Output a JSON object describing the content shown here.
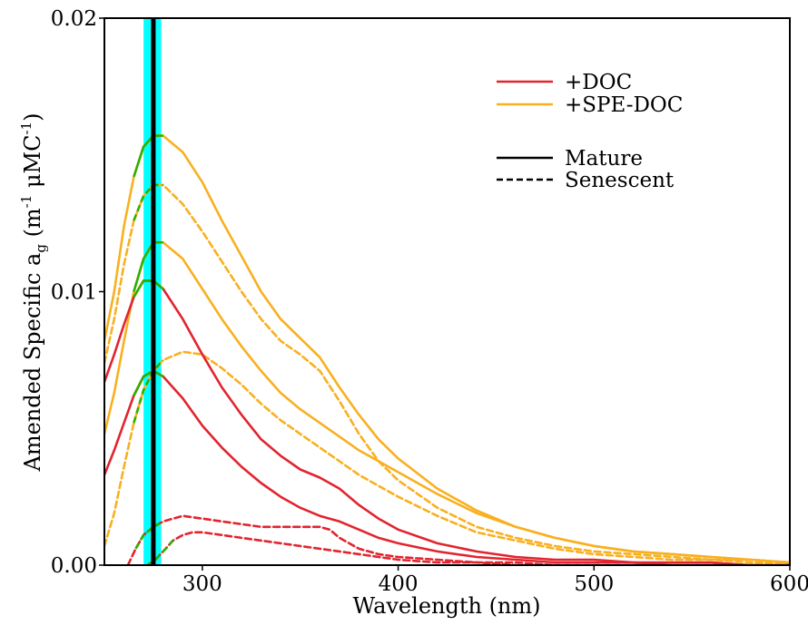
{
  "chart_data": {
    "type": "line",
    "xlabel": "Wavelength (nm)",
    "ylabel": {
      "prefix": "Amended Specific a",
      "prefix_sub": "g",
      "open": " (m",
      "exp1": "-1",
      "mid": " μMC",
      "exp2": "-1",
      "close": ")"
    },
    "xlim": [
      250,
      600
    ],
    "ylim": [
      0,
      0.02
    ],
    "xticks": [
      {
        "value": 300,
        "label": "300"
      },
      {
        "value": 400,
        "label": "400"
      },
      {
        "value": 500,
        "label": "500"
      },
      {
        "value": 600,
        "label": "600"
      }
    ],
    "yticks": [
      {
        "value": 0,
        "label": "0.00"
      },
      {
        "value": 0.01,
        "label": "0.01"
      },
      {
        "value": 0.02,
        "label": "0.02"
      }
    ],
    "grid": false,
    "legend_position": "top-right",
    "legend": {
      "colors": [
        {
          "label": "+DOC",
          "color": "#e2242f"
        },
        {
          "label": "+SPE-DOC",
          "color": "#f9b020"
        }
      ],
      "styles": [
        {
          "label": "Mature",
          "dash": "solid"
        },
        {
          "label": "Senescent",
          "dash": "dashed"
        }
      ]
    },
    "vband": {
      "x": [
        270,
        279
      ],
      "color": "#00ffff"
    },
    "vline": {
      "x": 275,
      "color": "#000000"
    },
    "highlight_color": "#2db000",
    "highlight_range": [
      265,
      285
    ],
    "series": [
      {
        "group": "+SPE-DOC",
        "stage": "Mature",
        "color": "#f9b020",
        "dash": "solid",
        "points": [
          [
            250,
            0.0082
          ],
          [
            255,
            0.01
          ],
          [
            260,
            0.0124
          ],
          [
            265,
            0.0142
          ],
          [
            270,
            0.0153
          ],
          [
            275,
            0.0157
          ],
          [
            280,
            0.0157
          ],
          [
            290,
            0.0151
          ],
          [
            300,
            0.014
          ],
          [
            310,
            0.0126
          ],
          [
            320,
            0.0113
          ],
          [
            330,
            0.01
          ],
          [
            340,
            0.009
          ],
          [
            350,
            0.0083
          ],
          [
            360,
            0.0076
          ],
          [
            370,
            0.0065
          ],
          [
            380,
            0.0055
          ],
          [
            390,
            0.0046
          ],
          [
            400,
            0.0039
          ],
          [
            420,
            0.0028
          ],
          [
            440,
            0.002
          ],
          [
            460,
            0.0014
          ],
          [
            480,
            0.001
          ],
          [
            500,
            0.0007
          ],
          [
            520,
            0.0005
          ],
          [
            540,
            0.0004
          ],
          [
            560,
            0.0003
          ],
          [
            580,
            0.0002
          ],
          [
            600,
            0.0001
          ]
        ]
      },
      {
        "group": "+SPE-DOC",
        "stage": "Senescent",
        "color": "#f9b020",
        "dash": "dashed",
        "points": [
          [
            250,
            0.0074
          ],
          [
            255,
            0.009
          ],
          [
            260,
            0.011
          ],
          [
            265,
            0.0126
          ],
          [
            270,
            0.0135
          ],
          [
            275,
            0.0139
          ],
          [
            280,
            0.0139
          ],
          [
            290,
            0.0132
          ],
          [
            300,
            0.0122
          ],
          [
            310,
            0.0111
          ],
          [
            320,
            0.01
          ],
          [
            330,
            0.009
          ],
          [
            340,
            0.0082
          ],
          [
            350,
            0.0077
          ],
          [
            360,
            0.0071
          ],
          [
            370,
            0.006
          ],
          [
            380,
            0.0048
          ],
          [
            390,
            0.0038
          ],
          [
            400,
            0.0031
          ],
          [
            420,
            0.0021
          ],
          [
            440,
            0.0014
          ],
          [
            460,
            0.001
          ],
          [
            480,
            0.0007
          ],
          [
            500,
            0.0005
          ],
          [
            520,
            0.0004
          ],
          [
            540,
            0.0003
          ],
          [
            560,
            0.0002
          ],
          [
            580,
            0.0002
          ],
          [
            600,
            0.0001
          ]
        ]
      },
      {
        "group": "+SPE-DOC",
        "stage": "Mature",
        "color": "#f9b020",
        "dash": "solid",
        "points": [
          [
            250,
            0.0048
          ],
          [
            255,
            0.0063
          ],
          [
            260,
            0.0082
          ],
          [
            265,
            0.01
          ],
          [
            270,
            0.0112
          ],
          [
            275,
            0.0118
          ],
          [
            280,
            0.0118
          ],
          [
            290,
            0.0112
          ],
          [
            300,
            0.0101
          ],
          [
            310,
            0.009
          ],
          [
            320,
            0.008
          ],
          [
            330,
            0.0071
          ],
          [
            340,
            0.0063
          ],
          [
            350,
            0.0057
          ],
          [
            360,
            0.0052
          ],
          [
            370,
            0.0047
          ],
          [
            380,
            0.0042
          ],
          [
            390,
            0.0038
          ],
          [
            400,
            0.0034
          ],
          [
            420,
            0.0026
          ],
          [
            440,
            0.0019
          ],
          [
            460,
            0.0014
          ],
          [
            480,
            0.001
          ],
          [
            500,
            0.0007
          ],
          [
            520,
            0.0005
          ],
          [
            540,
            0.0004
          ],
          [
            560,
            0.0003
          ],
          [
            580,
            0.0002
          ],
          [
            600,
            0.0001
          ]
        ]
      },
      {
        "group": "+SPE-DOC",
        "stage": "Senescent",
        "color": "#f9b020",
        "dash": "dashed",
        "points": [
          [
            250,
            0.0007
          ],
          [
            255,
            0.0019
          ],
          [
            260,
            0.0036
          ],
          [
            265,
            0.0052
          ],
          [
            270,
            0.0064
          ],
          [
            275,
            0.0071
          ],
          [
            280,
            0.0075
          ],
          [
            290,
            0.0078
          ],
          [
            300,
            0.0077
          ],
          [
            310,
            0.0072
          ],
          [
            320,
            0.0066
          ],
          [
            330,
            0.0059
          ],
          [
            340,
            0.0053
          ],
          [
            350,
            0.0048
          ],
          [
            360,
            0.0043
          ],
          [
            370,
            0.0038
          ],
          [
            380,
            0.0033
          ],
          [
            390,
            0.0029
          ],
          [
            400,
            0.0025
          ],
          [
            420,
            0.0018
          ],
          [
            440,
            0.0012
          ],
          [
            460,
            0.0009
          ],
          [
            480,
            0.0006
          ],
          [
            500,
            0.0004
          ],
          [
            520,
            0.0003
          ],
          [
            540,
            0.0002
          ],
          [
            560,
            0.0002
          ],
          [
            580,
            0.0001
          ],
          [
            600,
            0.0001
          ]
        ]
      },
      {
        "group": "+DOC",
        "stage": "Mature",
        "color": "#e2242f",
        "dash": "solid",
        "points": [
          [
            250,
            0.0067
          ],
          [
            255,
            0.0077
          ],
          [
            260,
            0.0088
          ],
          [
            265,
            0.0098
          ],
          [
            270,
            0.0104
          ],
          [
            275,
            0.0104
          ],
          [
            280,
            0.0101
          ],
          [
            290,
            0.009
          ],
          [
            300,
            0.0077
          ],
          [
            310,
            0.0065
          ],
          [
            320,
            0.0055
          ],
          [
            330,
            0.0046
          ],
          [
            340,
            0.004
          ],
          [
            350,
            0.0035
          ],
          [
            360,
            0.0032
          ],
          [
            370,
            0.0028
          ],
          [
            380,
            0.0022
          ],
          [
            390,
            0.0017
          ],
          [
            400,
            0.0013
          ],
          [
            420,
            0.0008
          ],
          [
            440,
            0.0005
          ],
          [
            460,
            0.0003
          ],
          [
            480,
            0.0002
          ],
          [
            500,
            0.0002
          ],
          [
            520,
            0.0001
          ],
          [
            540,
            0.0001
          ],
          [
            560,
            0.0001
          ],
          [
            580,
            0.0
          ],
          [
            600,
            0.0
          ]
        ]
      },
      {
        "group": "+DOC",
        "stage": "Mature",
        "color": "#e2242f",
        "dash": "solid",
        "points": [
          [
            250,
            0.0033
          ],
          [
            255,
            0.0042
          ],
          [
            260,
            0.0052
          ],
          [
            265,
            0.0062
          ],
          [
            270,
            0.0069
          ],
          [
            275,
            0.0071
          ],
          [
            280,
            0.0069
          ],
          [
            290,
            0.0061
          ],
          [
            300,
            0.0051
          ],
          [
            310,
            0.0043
          ],
          [
            320,
            0.0036
          ],
          [
            330,
            0.003
          ],
          [
            340,
            0.0025
          ],
          [
            350,
            0.0021
          ],
          [
            360,
            0.0018
          ],
          [
            370,
            0.0016
          ],
          [
            380,
            0.0013
          ],
          [
            390,
            0.001
          ],
          [
            400,
            0.0008
          ],
          [
            420,
            0.0005
          ],
          [
            440,
            0.0003
          ],
          [
            460,
            0.0002
          ],
          [
            480,
            0.0001
          ],
          [
            500,
            0.0001
          ],
          [
            520,
            0.0001
          ],
          [
            540,
            0.0
          ],
          [
            560,
            0.0
          ],
          [
            580,
            0.0
          ],
          [
            600,
            0.0
          ]
        ]
      },
      {
        "group": "+DOC",
        "stage": "Senescent",
        "color": "#e2242f",
        "dash": "dashed",
        "points": [
          [
            262,
            0.0
          ],
          [
            266,
            0.0006
          ],
          [
            270,
            0.0011
          ],
          [
            275,
            0.0014
          ],
          [
            280,
            0.0016
          ],
          [
            290,
            0.0018
          ],
          [
            300,
            0.0017
          ],
          [
            310,
            0.0016
          ],
          [
            320,
            0.0015
          ],
          [
            330,
            0.0014
          ],
          [
            340,
            0.0014
          ],
          [
            350,
            0.0014
          ],
          [
            360,
            0.0014
          ],
          [
            365,
            0.0013
          ],
          [
            370,
            0.001
          ],
          [
            380,
            0.0006
          ],
          [
            390,
            0.0004
          ],
          [
            400,
            0.0003
          ],
          [
            420,
            0.0002
          ],
          [
            440,
            0.0001
          ],
          [
            460,
            0.0001
          ],
          [
            480,
            0.0
          ],
          [
            500,
            0.0
          ],
          [
            520,
            0.0
          ],
          [
            540,
            0.0
          ],
          [
            560,
            0.0
          ],
          [
            580,
            0.0
          ],
          [
            600,
            0.0
          ]
        ]
      },
      {
        "group": "+DOC",
        "stage": "Senescent",
        "color": "#e2242f",
        "dash": "dashed",
        "points": [
          [
            272,
            0.0
          ],
          [
            276,
            0.0002
          ],
          [
            280,
            0.0005
          ],
          [
            285,
            0.0009
          ],
          [
            290,
            0.0011
          ],
          [
            295,
            0.0012
          ],
          [
            300,
            0.0012
          ],
          [
            310,
            0.0011
          ],
          [
            320,
            0.001
          ],
          [
            330,
            0.0009
          ],
          [
            340,
            0.0008
          ],
          [
            350,
            0.0007
          ],
          [
            360,
            0.0006
          ],
          [
            370,
            0.0005
          ],
          [
            380,
            0.0004
          ],
          [
            390,
            0.0003
          ],
          [
            400,
            0.0002
          ],
          [
            420,
            0.0001
          ],
          [
            440,
            0.0001
          ],
          [
            460,
            0.0
          ],
          [
            480,
            0.0
          ],
          [
            500,
            0.0
          ],
          [
            520,
            0.0
          ],
          [
            540,
            0.0
          ],
          [
            560,
            0.0
          ],
          [
            580,
            0.0
          ],
          [
            600,
            0.0
          ]
        ]
      }
    ]
  }
}
